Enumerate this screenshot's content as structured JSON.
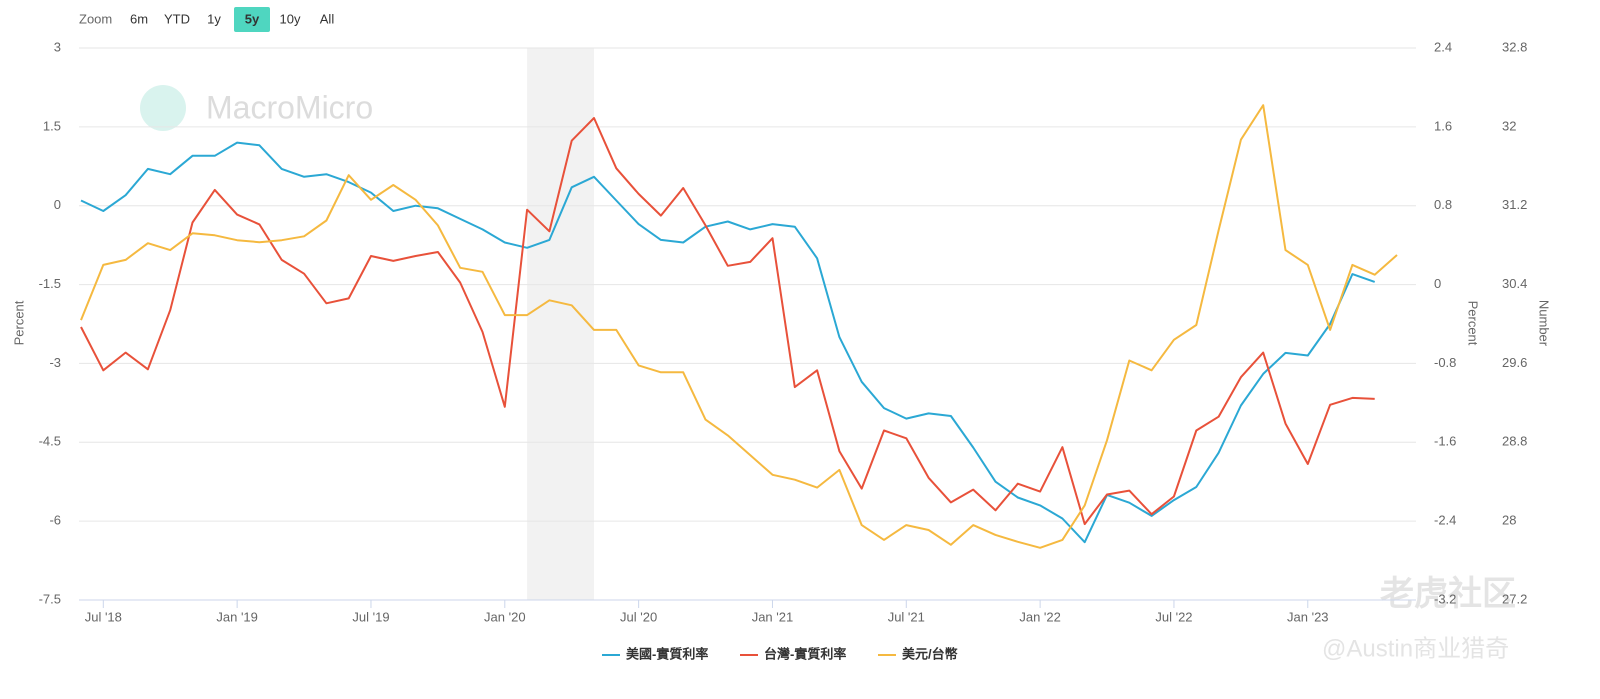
{
  "chart_data": {
    "type": "line",
    "range_selector": {
      "label": "Zoom",
      "buttons": [
        "6m",
        "YTD",
        "1y",
        "5y",
        "10y",
        "All"
      ],
      "selected": 3
    },
    "watermarks": [
      "MacroMicro",
      "老虎社区",
      "@Austin商业猎奇"
    ],
    "y_label": "Percent",
    "y2_label": "Percent",
    "y3_label": "Number",
    "x": [
      "2018-06",
      "2018-07",
      "2018-08",
      "2018-09",
      "2018-10",
      "2018-11",
      "2018-12",
      "2019-01",
      "2019-02",
      "2019-03",
      "2019-04",
      "2019-05",
      "2019-06",
      "2019-07",
      "2019-08",
      "2019-09",
      "2019-10",
      "2019-11",
      "2019-12",
      "2020-01",
      "2020-02",
      "2020-03",
      "2020-04",
      "2020-05",
      "2020-06",
      "2020-07",
      "2020-08",
      "2020-09",
      "2020-10",
      "2020-11",
      "2020-12",
      "2021-01",
      "2021-02",
      "2021-03",
      "2021-04",
      "2021-05",
      "2021-06",
      "2021-07",
      "2021-08",
      "2021-09",
      "2021-10",
      "2021-11",
      "2021-12",
      "2022-01",
      "2022-02",
      "2022-03",
      "2022-04",
      "2022-05",
      "2022-06",
      "2022-07",
      "2022-08",
      "2022-09",
      "2022-10",
      "2022-11",
      "2022-12",
      "2023-01",
      "2023-02",
      "2023-03",
      "2023-04",
      "2023-05"
    ],
    "xlim": [
      "2018-06",
      "2023-05"
    ],
    "xticks": [
      {
        "value": "2018-07",
        "label": "Jul '18"
      },
      {
        "value": "2019-01",
        "label": "Jan '19"
      },
      {
        "value": "2019-07",
        "label": "Jul '19"
      },
      {
        "value": "2020-01",
        "label": "Jan '20"
      },
      {
        "value": "2020-07",
        "label": "Jul '20"
      },
      {
        "value": "2021-01",
        "label": "Jan '21"
      },
      {
        "value": "2021-07",
        "label": "Jul '21"
      },
      {
        "value": "2022-01",
        "label": "Jan '22"
      },
      {
        "value": "2022-07",
        "label": "Jul '22"
      },
      {
        "value": "2023-01",
        "label": "Jan '23"
      }
    ],
    "bands": [
      [
        "2020-02",
        "2020-05"
      ]
    ],
    "band_color": "#f2f2f2",
    "ylim": [
      -7.5,
      3
    ],
    "yticks": [
      -7.5,
      -6,
      -4.5,
      -3,
      -1.5,
      0,
      1.5,
      3
    ],
    "y2lim": [
      -3.2,
      2.4
    ],
    "y2ticks": [
      -3.2,
      -2.4,
      -1.6,
      -0.8,
      0,
      0.8,
      1.6,
      2.4
    ],
    "y3lim": [
      27.2,
      32.8
    ],
    "y3ticks": [
      27.2,
      28,
      28.8,
      29.6,
      30.4,
      31.2,
      32,
      32.8
    ],
    "grid": true,
    "legend": "bottom",
    "series": [
      {
        "name": "美國-實質利率",
        "color": "#2ba8d4",
        "axis": "y",
        "values": [
          0.1,
          -0.1,
          0.2,
          0.7,
          0.6,
          0.95,
          0.95,
          1.2,
          1.15,
          0.7,
          0.55,
          0.6,
          0.45,
          0.25,
          -0.1,
          0,
          -0.05,
          -0.25,
          -0.45,
          -0.7,
          -0.8,
          -0.65,
          0.35,
          0.55,
          0.1,
          -0.35,
          -0.65,
          -0.7,
          -0.4,
          -0.3,
          -0.45,
          -0.35,
          -0.4,
          -1.0,
          -2.5,
          -3.35,
          -3.85,
          -4.05,
          -3.95,
          -4.0,
          -4.6,
          -5.25,
          -5.55,
          -5.7,
          -5.95,
          -6.4,
          -5.5,
          -5.65,
          -5.9,
          -5.6,
          -5.35,
          -4.7,
          -3.8,
          -3.2,
          -2.8,
          -2.85,
          -2.25,
          -1.3,
          -1.45,
          null
        ]
      },
      {
        "name": "台灣-實質利率",
        "color": "#e8513a",
        "axis": "y2",
        "values": [
          -0.43,
          -0.87,
          -0.69,
          -0.86,
          -0.26,
          0.63,
          0.96,
          0.71,
          0.61,
          0.25,
          0.11,
          -0.19,
          -0.14,
          0.29,
          0.24,
          0.29,
          0.33,
          0.02,
          -0.48,
          -1.24,
          0.76,
          0.54,
          1.46,
          1.69,
          1.18,
          0.92,
          0.7,
          0.98,
          0.6,
          0.19,
          0.23,
          0.47,
          -1.04,
          -0.87,
          -1.69,
          -2.07,
          -1.48,
          -1.56,
          -1.96,
          -2.21,
          -2.08,
          -2.29,
          -2.02,
          -2.1,
          -1.65,
          -2.43,
          -2.13,
          -2.09,
          -2.33,
          -2.15,
          -1.48,
          -1.34,
          -0.94,
          -0.69,
          -1.41,
          -1.82,
          -1.22,
          -1.15,
          -1.16,
          null
        ]
      },
      {
        "name": "美元/台幣",
        "color": "#f5b940",
        "axis": "y3",
        "values": [
          30.04,
          30.6,
          30.65,
          30.82,
          30.75,
          30.92,
          30.9,
          30.85,
          30.83,
          30.85,
          30.89,
          31.05,
          31.51,
          31.26,
          31.41,
          31.26,
          31.0,
          30.57,
          30.53,
          30.09,
          30.09,
          30.24,
          30.19,
          29.94,
          29.94,
          29.58,
          29.51,
          29.51,
          29.03,
          28.87,
          28.67,
          28.47,
          28.42,
          28.34,
          28.52,
          27.96,
          27.81,
          27.96,
          27.91,
          27.76,
          27.96,
          27.86,
          27.79,
          27.73,
          27.81,
          28.16,
          28.82,
          29.63,
          29.53,
          29.84,
          29.99,
          30.95,
          31.87,
          32.22,
          30.75,
          30.6,
          29.94,
          30.6,
          30.5,
          30.7
        ]
      }
    ]
  }
}
